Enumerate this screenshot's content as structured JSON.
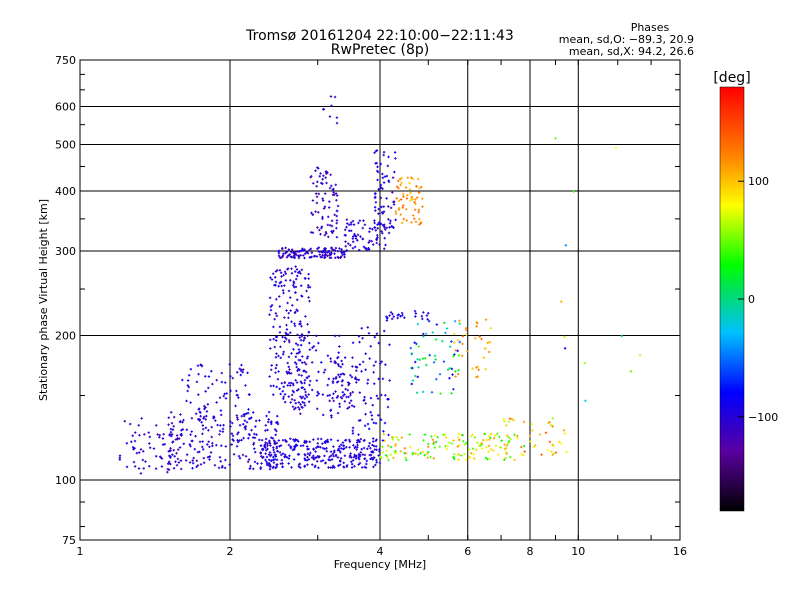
{
  "chart_data": {
    "type": "scatter",
    "title": "Tromsø 20161204 22:10:00−22:11:43",
    "subtitle": "RwPretec (8p)",
    "xlabel": "Frequency [MHz]",
    "ylabel": "Stationary phase Virtual Height [km]",
    "x_scale": "log",
    "y_scale": "log",
    "xlim": [
      1,
      16
    ],
    "ylim": [
      75,
      750
    ],
    "x_ticks": [
      1,
      2,
      4,
      6,
      8,
      10,
      16
    ],
    "x_tick_labels": [
      "1",
      "2",
      "4",
      "6",
      "8",
      "10",
      "16"
    ],
    "x_minor_ticks": [
      3,
      5,
      7,
      9
    ],
    "y_ticks": [
      75,
      100,
      200,
      300,
      400,
      500,
      600,
      750
    ],
    "y_tick_labels": [
      "75",
      "100",
      "200",
      "300",
      "400",
      "500",
      "600",
      "750"
    ],
    "y_minor_ticks": [
      150
    ],
    "grid": true,
    "stats": {
      "title": "Phases",
      "line_o": "mean, sd,O: −89.3, 20.9",
      "line_x": "mean, sd,X:  94.2, 26.6"
    },
    "colorbar": {
      "label": "[deg]",
      "range": [
        -180,
        180
      ],
      "ticks": [
        100,
        0,
        -100
      ],
      "tick_labels": [
        "100",
        "0",
        "−100"
      ]
    },
    "clusters": [
      {
        "f": [
          1.2,
          1.6
        ],
        "h": [
          103,
          135
        ],
        "phase": [
          -125,
          -95
        ],
        "n": 70
      },
      {
        "f": [
          1.5,
          2.5
        ],
        "h": [
          105,
          140
        ],
        "phase": [
          -120,
          -85
        ],
        "n": 220
      },
      {
        "f": [
          2.3,
          4.0
        ],
        "h": [
          106,
          122
        ],
        "phase": [
          -115,
          -80
        ],
        "n": 300
      },
      {
        "f": [
          4.0,
          7.8
        ],
        "h": [
          110,
          125
        ],
        "phase": [
          20,
          120
        ],
        "n": 150
      },
      {
        "f": [
          7.0,
          9.5
        ],
        "h": [
          112,
          135
        ],
        "phase": [
          60,
          140
        ],
        "n": 40
      },
      {
        "f": [
          1.6,
          2.2
        ],
        "h": [
          130,
          175
        ],
        "phase": [
          -115,
          -80
        ],
        "n": 70
      },
      {
        "f": [
          2.4,
          2.9
        ],
        "h": [
          140,
          280
        ],
        "phase": [
          -120,
          -85
        ],
        "n": 220
      },
      {
        "f": [
          2.7,
          3.4
        ],
        "h": [
          135,
          200
        ],
        "phase": [
          -115,
          -85
        ],
        "n": 80
      },
      {
        "f": [
          3.2,
          3.6
        ],
        "h": [
          140,
          180
        ],
        "phase": [
          -120,
          -90
        ],
        "n": 50
      },
      {
        "f": [
          3.5,
          4.2
        ],
        "h": [
          120,
          210
        ],
        "phase": [
          -110,
          -80
        ],
        "n": 70
      },
      {
        "f": [
          2.5,
          3.4
        ],
        "h": [
          290,
          305
        ],
        "phase": [
          -120,
          -90
        ],
        "n": 120
      },
      {
        "f": [
          3.4,
          4.2
        ],
        "h": [
          300,
          350
        ],
        "phase": [
          -115,
          -85
        ],
        "n": 80
      },
      {
        "f": [
          2.9,
          3.3
        ],
        "h": [
          320,
          450
        ],
        "phase": [
          -125,
          -95
        ],
        "n": 80
      },
      {
        "f": [
          3.9,
          4.3
        ],
        "h": [
          330,
          490
        ],
        "phase": [
          -115,
          -85
        ],
        "n": 60
      },
      {
        "f": [
          4.3,
          4.9
        ],
        "h": [
          340,
          430
        ],
        "phase": [
          95,
          135
        ],
        "n": 60
      },
      {
        "f": [
          4.6,
          5.8
        ],
        "h": [
          150,
          220
        ],
        "phase": [
          -90,
          40
        ],
        "n": 60
      },
      {
        "f": [
          5.6,
          6.7
        ],
        "h": [
          160,
          220
        ],
        "phase": [
          90,
          130
        ],
        "n": 35
      },
      {
        "f": [
          4.1,
          5.0
        ],
        "h": [
          215,
          225
        ],
        "phase": [
          -110,
          -80
        ],
        "n": 25
      },
      {
        "f": [
          3.0,
          3.3
        ],
        "h": [
          550,
          630
        ],
        "phase": [
          -120,
          -100
        ],
        "n": 8
      },
      {
        "f": [
          9.0,
          13.5
        ],
        "h": [
          110,
          580
        ],
        "phase": [
          -100,
          120
        ],
        "n": 12
      }
    ]
  }
}
